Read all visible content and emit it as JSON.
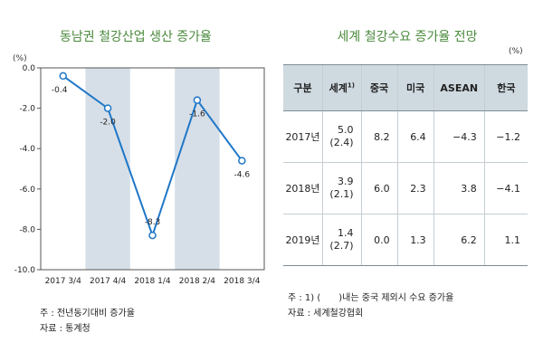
{
  "left": {
    "title": "동남권 철강산업 생산 증가율",
    "unit": "(%)",
    "note": "주 : 전년동기대비 증가율",
    "source": "자료 : 통계청"
  },
  "chart_data": {
    "type": "line",
    "title": "동남권 철강산업 생산 증가율",
    "categories": [
      "2017 3/4",
      "2017 4/4",
      "2018 1/4",
      "2018 2/4",
      "2018 3/4"
    ],
    "values": [
      -0.4,
      -2.0,
      -8.3,
      -1.6,
      -4.6
    ],
    "data_labels": [
      "-0.4",
      "-2.0",
      "-8.3",
      "-1.6",
      "-4.6"
    ],
    "ylim": [
      -10.0,
      0.0
    ],
    "yticks": [
      "0.0",
      "-2.0",
      "-4.0",
      "-6.0",
      "-8.0",
      "-10.0"
    ],
    "ylabel": "(%)",
    "shaded_categories": [
      "2017 4/4",
      "2018 2/4"
    ],
    "line_color": "#1f77c8",
    "shade_color": "#d6dfe7",
    "grid": false
  },
  "right": {
    "title": "세계 철강수요 증가율 전망",
    "unit": "(%)",
    "header_world_note": "1)",
    "headers": [
      "구분",
      "세계",
      "중국",
      "미국",
      "ASEAN",
      "한국"
    ],
    "rows": [
      {
        "year": "2017년",
        "world": "5.0",
        "world_sub": "(2.4)",
        "china": "8.2",
        "usa": "6.4",
        "asean": "−4.3",
        "korea": "−1.2"
      },
      {
        "year": "2018년",
        "world": "3.9",
        "world_sub": "(2.1)",
        "china": "6.0",
        "usa": "2.3",
        "asean": "3.8",
        "korea": "−4.1"
      },
      {
        "year": "2019년",
        "world": "1.4",
        "world_sub": "(2.7)",
        "china": "0.0",
        "usa": "1.3",
        "asean": "6.2",
        "korea": "1.1"
      }
    ],
    "note": "주 : 1) (　　)내는 중국 제외시 수요 증가율",
    "source": "자료 : 세계철강협회"
  }
}
